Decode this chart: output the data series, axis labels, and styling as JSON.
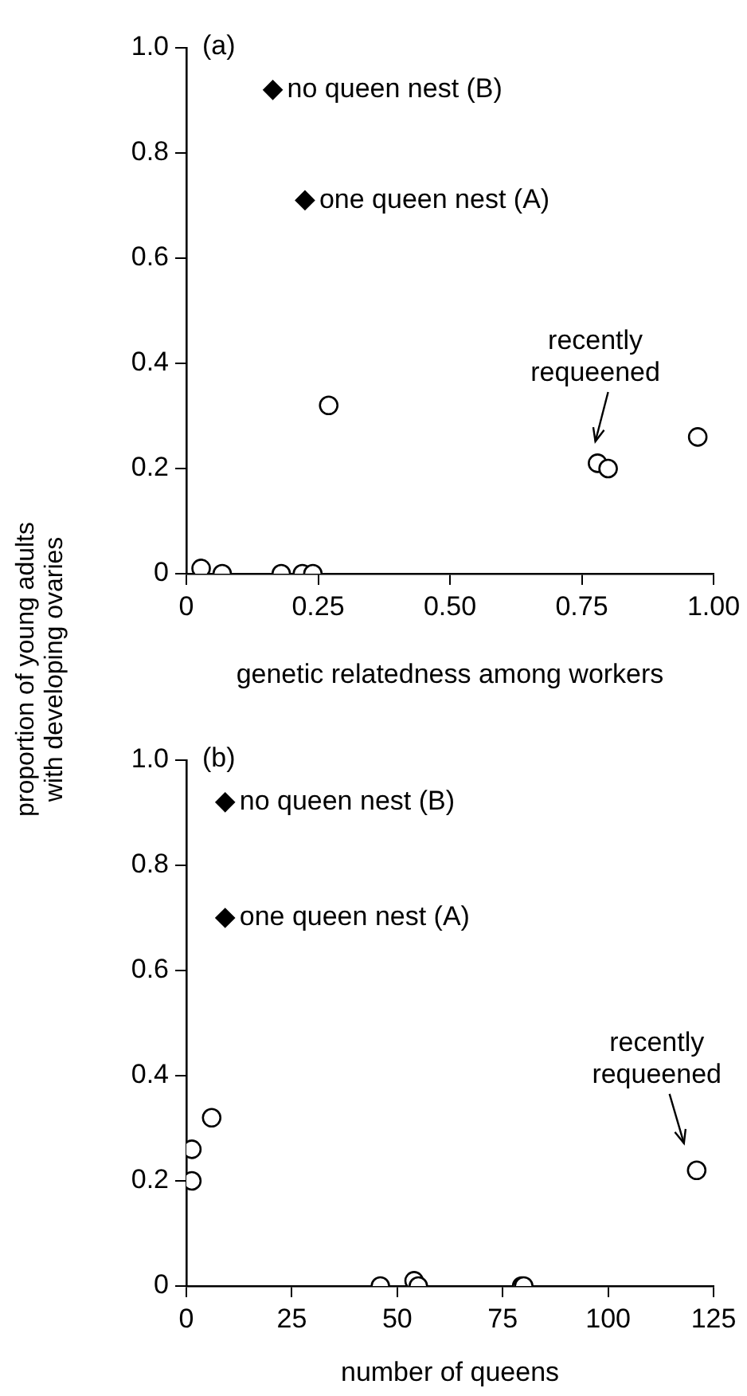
{
  "chart_data": [
    {
      "type": "scatter",
      "title": "(a)",
      "xlabel": "genetic relatedness among workers",
      "ylabel": "proportion of young adults\nwith developing ovaries",
      "series": [
        {
          "color": "#ffffff",
          "marker": "circle",
          "x": [
            0.028,
            0.068,
            0.18,
            0.22,
            0.24,
            0.27,
            0.78,
            0.8,
            0.97
          ],
          "values": [
            0.01,
            0,
            0,
            0,
            0,
            0.32,
            0.21,
            0.2,
            0.26
          ]
        },
        {
          "color": "#000000",
          "marker": "diamond",
          "x": [
            0.164,
            0.225
          ],
          "values": [
            0.92,
            0.71
          ]
        }
      ],
      "annotations": [
        {
          "text": "no queen nest (B)",
          "x": 0.164,
          "y": 0.92
        },
        {
          "text": "one queen nest (A)",
          "x": 0.225,
          "y": 0.71
        },
        {
          "text": "recently\nrequeened",
          "x": 0.8,
          "y": 0.2
        }
      ],
      "xlim": [
        0,
        1
      ],
      "xticks": [
        0,
        0.25,
        {
          "value": 0.5,
          "label": "0.50"
        },
        0.75,
        {
          "value": 1,
          "label": "1.00"
        }
      ],
      "ylim": [
        0,
        1
      ],
      "yticks": [
        0,
        0.2,
        0.4,
        0.6,
        0.8,
        {
          "value": 1,
          "label": "1.0"
        }
      ],
      "grid": false,
      "legend": false
    },
    {
      "type": "scatter",
      "title": "(b)",
      "xlabel": "number of queens",
      "series": [
        {
          "color": "#ffffff",
          "marker": "circle",
          "x": [
            1.3,
            1.3,
            6,
            46,
            54,
            55,
            79.5,
            80,
            121
          ],
          "values": [
            0.26,
            0.2,
            0.32,
            0,
            0.01,
            0,
            0,
            0,
            0.22
          ]
        },
        {
          "color": "#000000",
          "marker": "diamond",
          "x": [
            9.2,
            9.2
          ],
          "values": [
            0.92,
            0.7
          ]
        }
      ],
      "annotations": [
        {
          "text": "no queen nest (B)",
          "x": 9.2,
          "y": 0.92
        },
        {
          "text": "one queen nest (A)",
          "x": 9.2,
          "y": 0.7
        },
        {
          "text": "recently\nrequeened",
          "x": 121,
          "y": 0.22
        }
      ],
      "xlim": [
        0,
        125
      ],
      "xticks": [
        0,
        25,
        50,
        75,
        100,
        125
      ],
      "ylim": [
        0,
        1
      ],
      "yticks": [
        0,
        0.2,
        0.4,
        0.6,
        0.8,
        {
          "value": 1,
          "label": "1.0"
        }
      ],
      "grid": false,
      "legend": false
    }
  ]
}
